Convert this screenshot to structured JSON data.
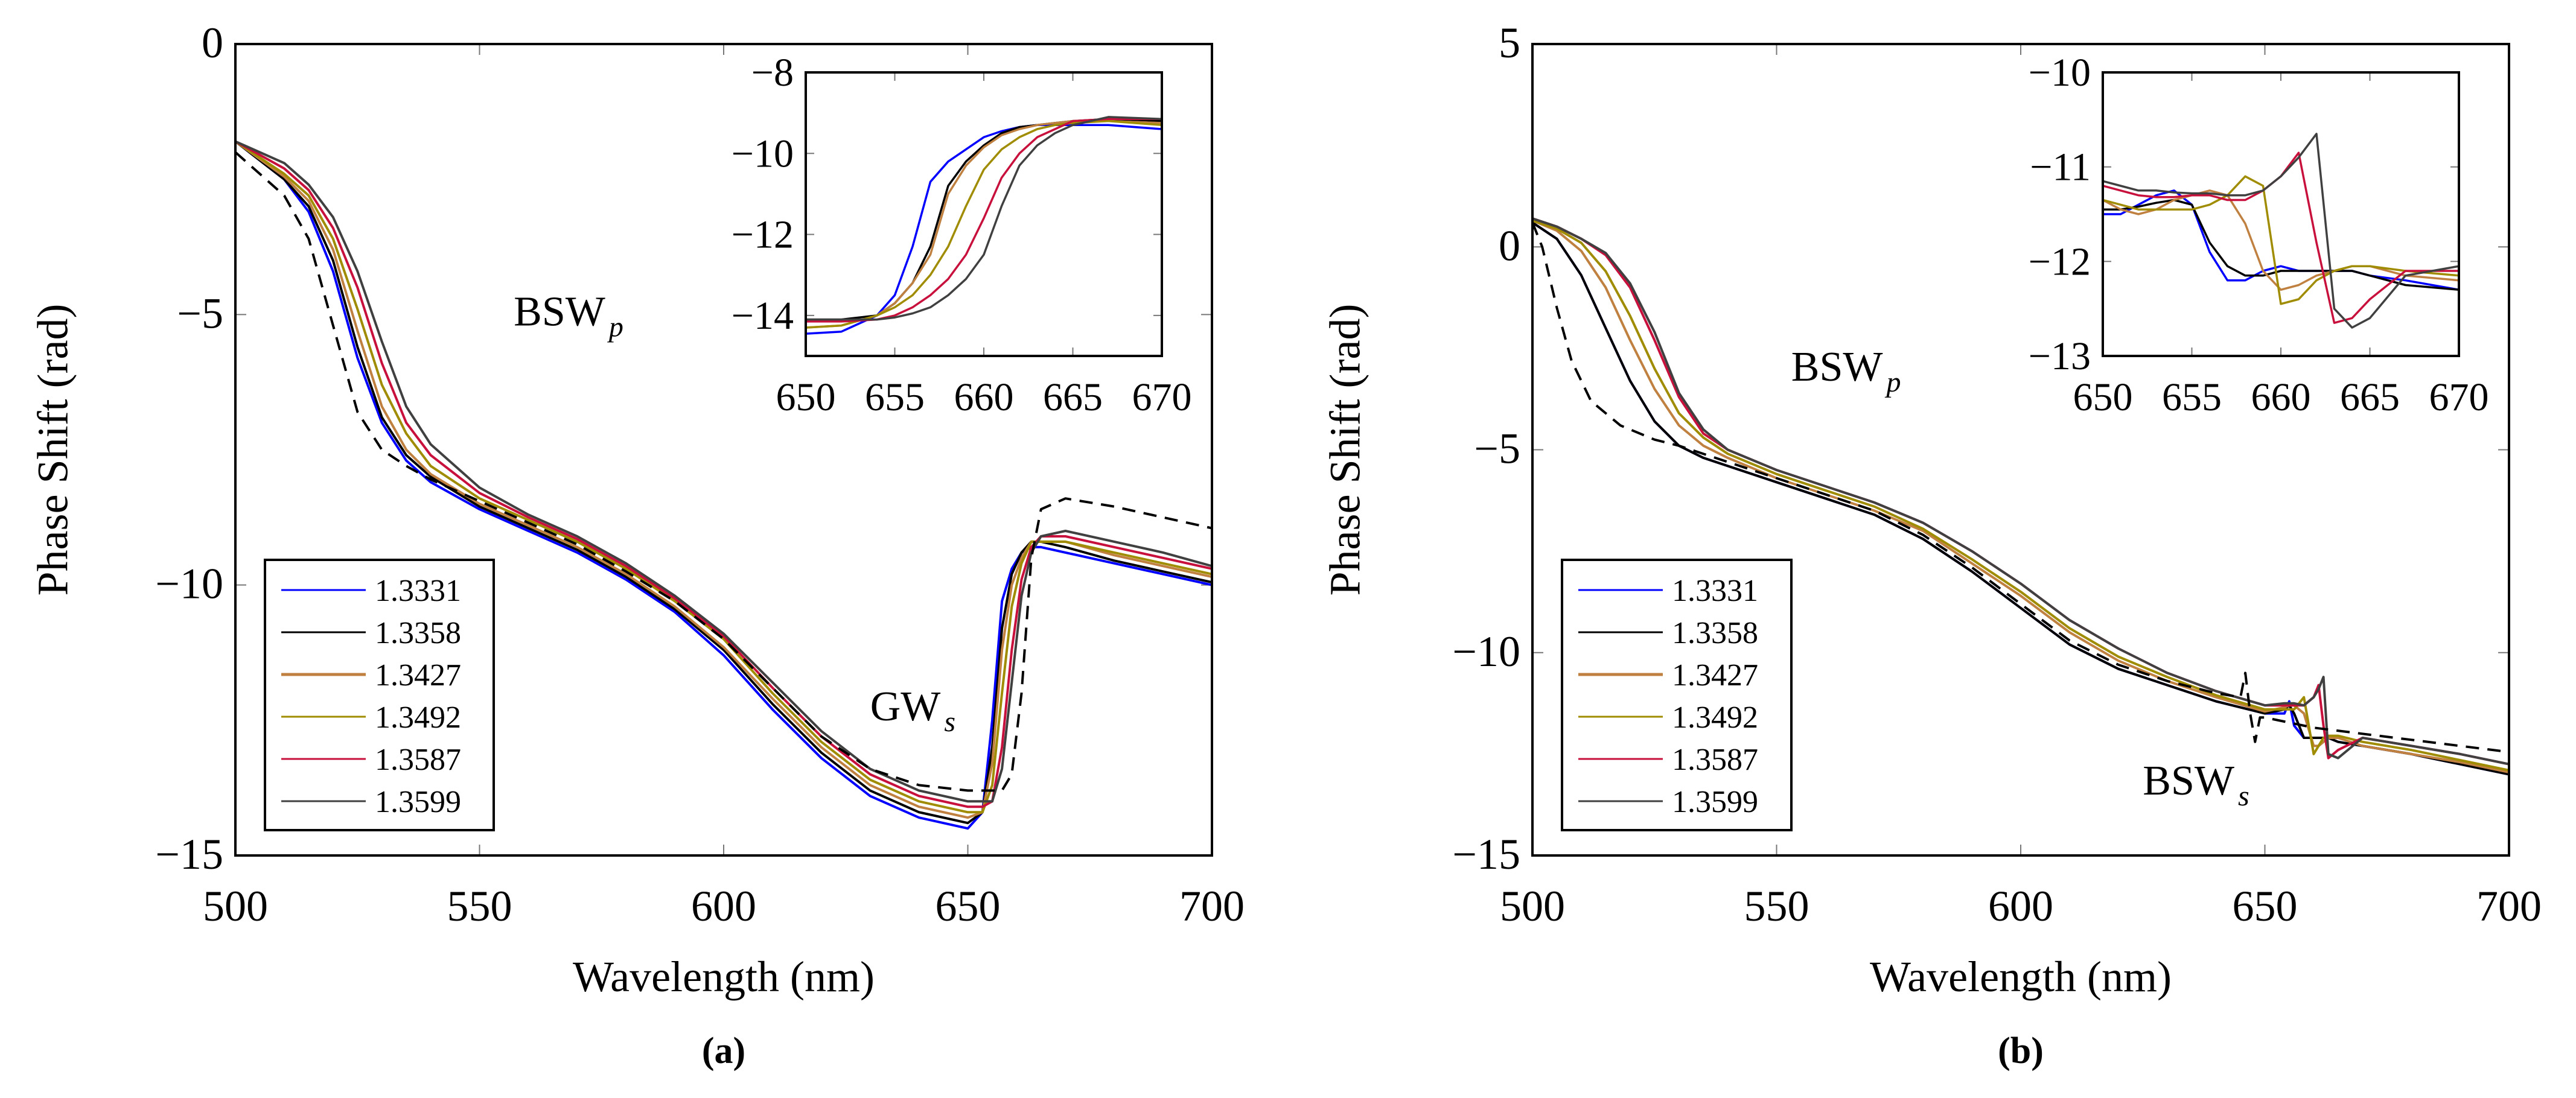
{
  "legend_colors": {
    "1.3331": "#0000ff",
    "1.3358": "#000000",
    "1.3427": "#bf8040",
    "1.3492": "#a08c00",
    "1.3587": "#c8103c",
    "1.3599": "#404040",
    "reference": "#000000"
  },
  "chart_data": [
    {
      "panel_label": "(a)",
      "type": "line",
      "xlabel": "Wavelength (nm)",
      "ylabel": "Phase Shift (rad)",
      "xlim": [
        500,
        700
      ],
      "ylim": [
        -15,
        0
      ],
      "xticks": [
        500,
        550,
        600,
        650,
        700
      ],
      "yticks": [
        0,
        -5,
        -10,
        -15
      ],
      "legend_position": "bottom-left",
      "annotations": [
        {
          "base": "BSW",
          "sub": "p",
          "x": 557,
          "y": -5.2
        },
        {
          "base": "GW",
          "sub": "s",
          "x": 630,
          "y": -12.5
        }
      ],
      "x": [
        500,
        510,
        515,
        520,
        525,
        530,
        535,
        540,
        550,
        560,
        570,
        580,
        590,
        600,
        610,
        620,
        630,
        640,
        650,
        653,
        655,
        657,
        659,
        661,
        663,
        665,
        670,
        680,
        690,
        700
      ],
      "series": [
        {
          "name": "1.3331",
          "y": [
            -1.8,
            -2.5,
            -3.1,
            -4.2,
            -5.8,
            -7.0,
            -7.7,
            -8.1,
            -8.6,
            -9.0,
            -9.4,
            -9.9,
            -10.5,
            -11.3,
            -12.3,
            -13.2,
            -13.9,
            -14.3,
            -14.5,
            -14.2,
            -12.5,
            -10.3,
            -9.7,
            -9.4,
            -9.3,
            -9.3,
            -9.4,
            -9.6,
            -9.8,
            -10.0
          ]
        },
        {
          "name": "1.3358",
          "y": [
            -1.8,
            -2.5,
            -3.0,
            -4.0,
            -5.6,
            -6.9,
            -7.6,
            -8.0,
            -8.55,
            -8.95,
            -9.35,
            -9.85,
            -10.45,
            -11.2,
            -12.2,
            -13.1,
            -13.8,
            -14.2,
            -14.4,
            -14.2,
            -13.0,
            -10.8,
            -9.8,
            -9.4,
            -9.2,
            -9.2,
            -9.3,
            -9.55,
            -9.75,
            -9.95
          ]
        },
        {
          "name": "1.3427",
          "y": [
            -1.8,
            -2.45,
            -2.9,
            -3.8,
            -5.3,
            -6.7,
            -7.5,
            -7.95,
            -8.5,
            -8.9,
            -9.3,
            -9.8,
            -10.4,
            -11.15,
            -12.1,
            -13.0,
            -13.7,
            -14.1,
            -14.3,
            -14.2,
            -13.3,
            -11.2,
            -10.0,
            -9.5,
            -9.2,
            -9.2,
            -9.2,
            -9.45,
            -9.65,
            -9.85
          ]
        },
        {
          "name": "1.3492",
          "y": [
            -1.8,
            -2.4,
            -2.8,
            -3.6,
            -4.9,
            -6.3,
            -7.2,
            -7.8,
            -8.4,
            -8.8,
            -9.2,
            -9.7,
            -10.3,
            -11.0,
            -12.0,
            -12.9,
            -13.6,
            -14.0,
            -14.2,
            -14.2,
            -13.7,
            -12.0,
            -10.4,
            -9.6,
            -9.2,
            -9.2,
            -9.2,
            -9.4,
            -9.6,
            -9.8
          ]
        },
        {
          "name": "1.3587",
          "y": [
            -1.8,
            -2.3,
            -2.7,
            -3.4,
            -4.5,
            -5.9,
            -7.0,
            -7.6,
            -8.3,
            -8.75,
            -9.15,
            -9.65,
            -10.25,
            -10.95,
            -11.9,
            -12.8,
            -13.5,
            -13.9,
            -14.1,
            -14.1,
            -14.0,
            -13.0,
            -11.2,
            -9.9,
            -9.3,
            -9.1,
            -9.1,
            -9.3,
            -9.5,
            -9.7
          ]
        },
        {
          "name": "1.3599",
          "y": [
            -1.8,
            -2.2,
            -2.6,
            -3.2,
            -4.2,
            -5.5,
            -6.7,
            -7.4,
            -8.2,
            -8.7,
            -9.1,
            -9.6,
            -10.2,
            -10.9,
            -11.8,
            -12.7,
            -13.4,
            -13.8,
            -14.0,
            -14.0,
            -14.0,
            -13.4,
            -11.8,
            -10.2,
            -9.4,
            -9.1,
            -9.0,
            -9.2,
            -9.4,
            -9.65
          ]
        },
        {
          "style": "dashed",
          "y": [
            -2.0,
            -2.8,
            -3.6,
            -5.2,
            -6.8,
            -7.5,
            -7.8,
            -8.05,
            -8.45,
            -8.85,
            -9.25,
            -9.75,
            -10.3,
            -11.0,
            -11.9,
            -12.8,
            -13.4,
            -13.7,
            -13.8,
            -13.8,
            -13.8,
            -13.8,
            -13.5,
            -12.0,
            -9.5,
            -8.6,
            -8.4,
            -8.55,
            -8.75,
            -8.95
          ]
        }
      ],
      "inset": {
        "xlim": [
          650,
          670
        ],
        "ylim": [
          -15,
          -8
        ],
        "xticks": [
          650,
          655,
          660,
          665,
          670
        ],
        "yticks": [
          -8,
          -10,
          -12,
          -14
        ],
        "x": [
          650,
          652,
          654,
          655,
          656,
          657,
          658,
          659,
          660,
          661,
          662,
          663,
          664,
          665,
          667,
          670
        ],
        "series": [
          {
            "name": "1.3331",
            "y": [
              -14.45,
              -14.4,
              -14.0,
              -13.5,
              -12.3,
              -10.7,
              -10.2,
              -9.9,
              -9.6,
              -9.45,
              -9.35,
              -9.3,
              -9.3,
              -9.3,
              -9.3,
              -9.4
            ]
          },
          {
            "name": "1.3358",
            "y": [
              -14.1,
              -14.1,
              -14.0,
              -13.7,
              -13.2,
              -12.3,
              -10.8,
              -10.2,
              -9.8,
              -9.5,
              -9.35,
              -9.3,
              -9.25,
              -9.2,
              -9.15,
              -9.2
            ]
          },
          {
            "name": "1.3427",
            "y": [
              -14.3,
              -14.25,
              -14.0,
              -13.7,
              -13.2,
              -12.5,
              -11.0,
              -10.3,
              -9.85,
              -9.55,
              -9.4,
              -9.3,
              -9.25,
              -9.2,
              -9.2,
              -9.25
            ]
          },
          {
            "name": "1.3492",
            "y": [
              -14.3,
              -14.25,
              -14.0,
              -13.8,
              -13.5,
              -13.0,
              -12.3,
              -11.3,
              -10.4,
              -9.9,
              -9.6,
              -9.4,
              -9.3,
              -9.25,
              -9.2,
              -9.3
            ]
          },
          {
            "name": "1.3587",
            "y": [
              -14.15,
              -14.15,
              -14.1,
              -14.0,
              -13.8,
              -13.5,
              -13.1,
              -12.5,
              -11.6,
              -10.6,
              -10.0,
              -9.6,
              -9.4,
              -9.2,
              -9.15,
              -9.15
            ]
          },
          {
            "name": "1.3599",
            "y": [
              -14.1,
              -14.1,
              -14.1,
              -14.05,
              -13.95,
              -13.8,
              -13.5,
              -13.1,
              -12.5,
              -11.3,
              -10.3,
              -9.8,
              -9.5,
              -9.3,
              -9.1,
              -9.15
            ]
          }
        ]
      }
    },
    {
      "panel_label": "(b)",
      "type": "line",
      "xlabel": "Wavelength (nm)",
      "ylabel": "Phase Shift (rad)",
      "xlim": [
        500,
        700
      ],
      "ylim": [
        -15,
        5
      ],
      "xticks": [
        500,
        550,
        600,
        650,
        700
      ],
      "yticks": [
        5,
        0,
        -5,
        -10,
        -15
      ],
      "legend_position": "bottom-left",
      "annotations": [
        {
          "base": "BSW",
          "sub": "p",
          "x": 553,
          "y": -3.3
        },
        {
          "base": "BSW",
          "sub": "s",
          "x": 625,
          "y": -13.5
        }
      ],
      "x": [
        500,
        505,
        510,
        515,
        520,
        525,
        530,
        535,
        540,
        550,
        560,
        570,
        580,
        590,
        600,
        610,
        620,
        630,
        640,
        650,
        654,
        655,
        656,
        658,
        660,
        661,
        662,
        663,
        665,
        670,
        680,
        690,
        700
      ],
      "series": [
        {
          "name": "1.3331",
          "y": [
            0.6,
            0.2,
            -0.7,
            -2.0,
            -3.3,
            -4.3,
            -4.9,
            -5.2,
            -5.4,
            -5.8,
            -6.2,
            -6.6,
            -7.2,
            -8.0,
            -8.9,
            -9.8,
            -10.4,
            -10.8,
            -11.2,
            -11.5,
            -11.5,
            -11.2,
            -11.8,
            -12.1,
            -12.1,
            -12.1,
            -12.1,
            -12.1,
            -12.2,
            -12.3,
            -12.5,
            -12.75,
            -13.0
          ]
        },
        {
          "name": "1.3358",
          "y": [
            0.6,
            0.2,
            -0.7,
            -2.0,
            -3.3,
            -4.3,
            -4.9,
            -5.2,
            -5.4,
            -5.8,
            -6.2,
            -6.6,
            -7.2,
            -8.0,
            -8.9,
            -9.8,
            -10.4,
            -10.8,
            -11.2,
            -11.5,
            -11.4,
            -11.3,
            -11.5,
            -12.1,
            -12.1,
            -12.1,
            -12.1,
            -12.1,
            -12.2,
            -12.3,
            -12.5,
            -12.75,
            -13.0
          ]
        },
        {
          "name": "1.3427",
          "y": [
            0.65,
            0.4,
            -0.1,
            -1.0,
            -2.3,
            -3.5,
            -4.4,
            -4.9,
            -5.2,
            -5.7,
            -6.1,
            -6.5,
            -7.0,
            -7.8,
            -8.6,
            -9.5,
            -10.2,
            -10.7,
            -11.1,
            -11.45,
            -11.35,
            -11.3,
            -11.3,
            -11.5,
            -12.3,
            -12.3,
            -12.2,
            -12.1,
            -12.1,
            -12.3,
            -12.5,
            -12.7,
            -12.95
          ]
        },
        {
          "name": "1.3492",
          "y": [
            0.65,
            0.45,
            0.1,
            -0.6,
            -1.7,
            -3.0,
            -4.1,
            -4.7,
            -5.1,
            -5.6,
            -6.0,
            -6.4,
            -6.95,
            -7.7,
            -8.5,
            -9.4,
            -10.1,
            -10.6,
            -11.05,
            -11.4,
            -11.4,
            -11.4,
            -11.4,
            -11.1,
            -12.5,
            -12.3,
            -12.1,
            -12.05,
            -12.05,
            -12.2,
            -12.4,
            -12.65,
            -12.9
          ]
        },
        {
          "name": "1.3587",
          "y": [
            0.7,
            0.5,
            0.2,
            -0.2,
            -1.0,
            -2.3,
            -3.7,
            -4.6,
            -5.0,
            -5.5,
            -5.9,
            -6.3,
            -6.8,
            -7.5,
            -8.3,
            -9.2,
            -9.9,
            -10.5,
            -10.95,
            -11.3,
            -11.3,
            -11.3,
            -11.3,
            -11.3,
            -11.1,
            -10.8,
            -11.8,
            -12.6,
            -12.4,
            -12.1,
            -12.3,
            -12.5,
            -12.75
          ]
        },
        {
          "name": "1.3599",
          "y": [
            0.7,
            0.5,
            0.2,
            -0.15,
            -0.9,
            -2.1,
            -3.6,
            -4.5,
            -5.0,
            -5.5,
            -5.9,
            -6.3,
            -6.8,
            -7.5,
            -8.3,
            -9.2,
            -9.9,
            -10.5,
            -10.95,
            -11.3,
            -11.25,
            -11.25,
            -11.25,
            -11.3,
            -11.1,
            -10.9,
            -10.6,
            -12.5,
            -12.6,
            -12.1,
            -12.3,
            -12.5,
            -12.75
          ]
        },
        {
          "style": "dashed",
          "x": [
            500,
            502,
            505,
            508,
            512,
            518,
            525,
            530,
            540,
            550,
            560,
            570,
            580,
            590,
            600,
            610,
            620,
            630,
            640,
            645,
            646,
            647,
            648,
            649,
            650,
            660,
            670,
            680,
            690,
            700
          ],
          "y": [
            0.6,
            0.0,
            -1.5,
            -2.8,
            -3.8,
            -4.4,
            -4.75,
            -4.9,
            -5.3,
            -5.7,
            -6.1,
            -6.5,
            -7.1,
            -7.9,
            -8.8,
            -9.7,
            -10.3,
            -10.7,
            -11.0,
            -11.1,
            -10.5,
            -11.5,
            -12.2,
            -11.6,
            -11.6,
            -11.85,
            -12.0,
            -12.15,
            -12.3,
            -12.45
          ]
        }
      ],
      "inset": {
        "xlim": [
          650,
          670
        ],
        "ylim": [
          -13,
          -10
        ],
        "xticks": [
          650,
          655,
          660,
          665,
          670
        ],
        "yticks": [
          -10,
          -11,
          -12,
          -13
        ],
        "x": [
          650,
          651,
          652,
          653,
          654,
          655,
          656,
          657,
          658,
          659,
          660,
          661,
          662,
          663,
          664,
          665,
          667,
          670
        ],
        "series": [
          {
            "name": "1.3331",
            "y": [
              -11.5,
              -11.5,
              -11.4,
              -11.3,
              -11.25,
              -11.4,
              -11.9,
              -12.2,
              -12.2,
              -12.1,
              -12.05,
              -12.1,
              -12.1,
              -12.1,
              -12.1,
              -12.15,
              -12.2,
              -12.3
            ]
          },
          {
            "name": "1.3358",
            "y": [
              -11.45,
              -11.45,
              -11.42,
              -11.38,
              -11.35,
              -11.4,
              -11.8,
              -12.05,
              -12.15,
              -12.15,
              -12.1,
              -12.1,
              -12.1,
              -12.1,
              -12.1,
              -12.15,
              -12.25,
              -12.3
            ]
          },
          {
            "name": "1.3427",
            "y": [
              -11.35,
              -11.45,
              -11.5,
              -11.45,
              -11.35,
              -11.3,
              -11.25,
              -11.3,
              -11.6,
              -12.1,
              -12.3,
              -12.25,
              -12.15,
              -12.1,
              -12.05,
              -12.05,
              -12.15,
              -12.2
            ]
          },
          {
            "name": "1.3492",
            "y": [
              -11.35,
              -11.4,
              -11.45,
              -11.45,
              -11.45,
              -11.45,
              -11.4,
              -11.3,
              -11.1,
              -11.2,
              -12.45,
              -12.4,
              -12.2,
              -12.1,
              -12.05,
              -12.05,
              -12.1,
              -12.15
            ]
          },
          {
            "name": "1.3587",
            "y": [
              -11.2,
              -11.25,
              -11.3,
              -11.32,
              -11.32,
              -11.3,
              -11.3,
              -11.35,
              -11.35,
              -11.25,
              -11.1,
              -10.85,
              -11.8,
              -12.65,
              -12.6,
              -12.4,
              -12.1,
              -12.1
            ]
          },
          {
            "name": "1.3599",
            "y": [
              -11.15,
              -11.2,
              -11.25,
              -11.25,
              -11.27,
              -11.28,
              -11.28,
              -11.3,
              -11.3,
              -11.25,
              -11.1,
              -10.9,
              -10.65,
              -12.5,
              -12.7,
              -12.6,
              -12.15,
              -12.05
            ]
          }
        ]
      }
    }
  ]
}
